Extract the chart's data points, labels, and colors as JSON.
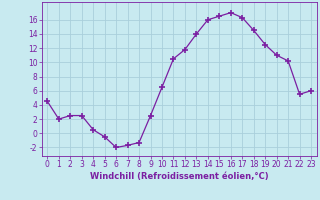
{
  "x_values": [
    0,
    1,
    2,
    3,
    4,
    5,
    6,
    7,
    8,
    9,
    10,
    11,
    12,
    13,
    14,
    15,
    16,
    17,
    18,
    19,
    20,
    21,
    22,
    23
  ],
  "y_values": [
    4.5,
    2.0,
    2.5,
    2.5,
    0.5,
    -0.5,
    -2.0,
    -1.7,
    -1.3,
    2.5,
    6.5,
    10.5,
    11.8,
    14.0,
    16.0,
    16.5,
    17.0,
    16.3,
    14.5,
    12.5,
    11.0,
    10.2,
    5.5,
    6.0
  ],
  "line_color": "#7b1fa2",
  "marker_color": "#7b1fa2",
  "bg_color": "#c8eaf0",
  "grid_color": "#aacfdb",
  "xlabel": "Windchill (Refroidissement éolien,°C)",
  "xlim": [
    -0.5,
    23.5
  ],
  "ylim": [
    -3.2,
    18.5
  ],
  "yticks": [
    -2,
    0,
    2,
    4,
    6,
    8,
    10,
    12,
    14,
    16
  ],
  "xtick_labels": [
    "0",
    "1",
    "2",
    "3",
    "4",
    "5",
    "6",
    "7",
    "8",
    "9",
    "10",
    "11",
    "12",
    "13",
    "14",
    "15",
    "16",
    "17",
    "18",
    "19",
    "20",
    "21",
    "22",
    "23"
  ],
  "label_fontsize": 6.0,
  "tick_fontsize": 5.5
}
